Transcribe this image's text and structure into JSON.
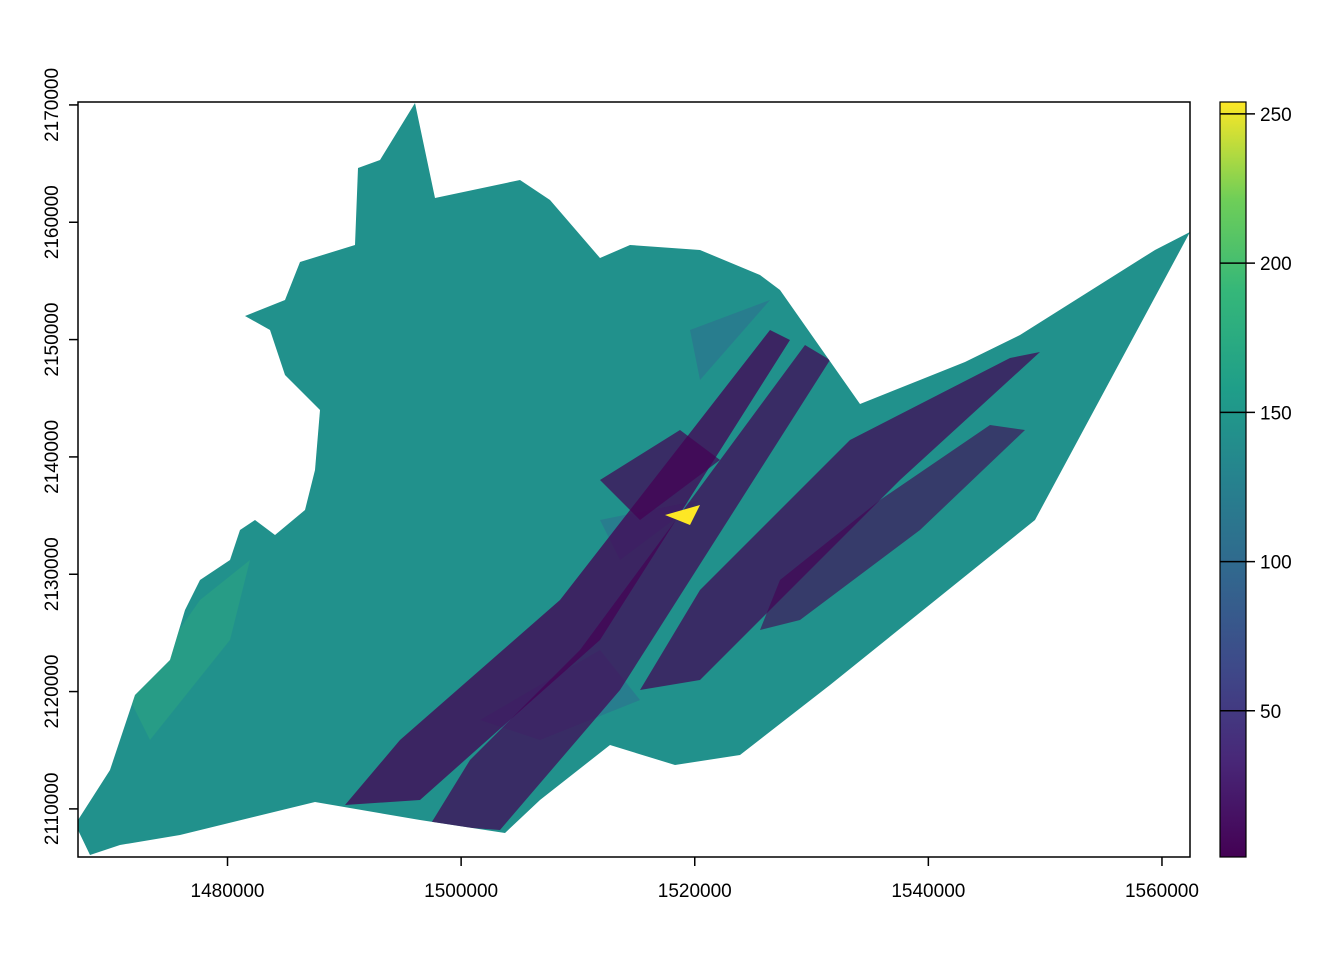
{
  "map": {
    "xlim": [
      1467200,
      1562400
    ],
    "ylim": [
      2105900,
      2170250
    ],
    "xticks": [
      1480000,
      1500000,
      1520000,
      1540000,
      1560000
    ],
    "yticks": [
      2110000,
      2120000,
      2130000,
      2140000,
      2150000,
      2160000,
      2170000
    ],
    "legend": {
      "lim": [
        1,
        254
      ],
      "ticks": [
        50,
        100,
        150,
        200,
        250
      ]
    }
  }
}
